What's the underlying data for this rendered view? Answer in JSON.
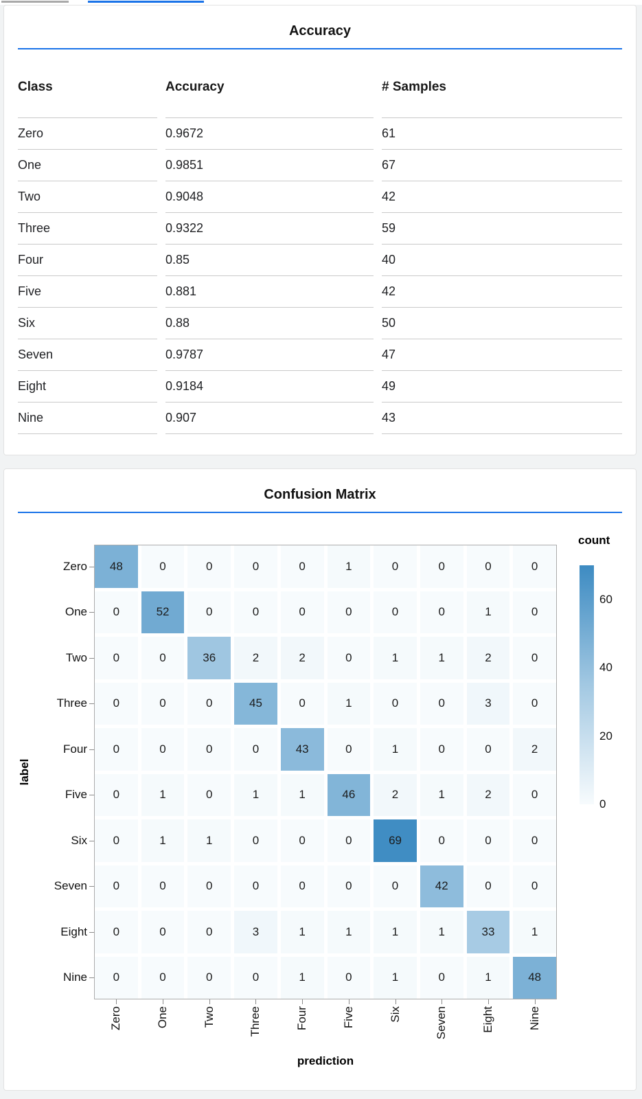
{
  "page": {
    "background": "#f1f3f4",
    "accent_blue": "#1a73e8",
    "tab_inactive_gray": "#a9a9a9"
  },
  "chart_data": [
    {
      "type": "table",
      "title": "Accuracy",
      "columns": [
        "Class",
        "Accuracy",
        "# Samples"
      ],
      "rows": [
        [
          "Zero",
          "0.9672",
          "61"
        ],
        [
          "One",
          "0.9851",
          "67"
        ],
        [
          "Two",
          "0.9048",
          "42"
        ],
        [
          "Three",
          "0.9322",
          "59"
        ],
        [
          "Four",
          "0.85",
          "40"
        ],
        [
          "Five",
          "0.881",
          "42"
        ],
        [
          "Six",
          "0.88",
          "50"
        ],
        [
          "Seven",
          "0.9787",
          "47"
        ],
        [
          "Eight",
          "0.9184",
          "49"
        ],
        [
          "Nine",
          "0.907",
          "43"
        ]
      ]
    },
    {
      "type": "heatmap",
      "title": "Confusion Matrix",
      "xlabel": "prediction",
      "ylabel": "label",
      "legend_title": "count",
      "legend_ticks": [
        0,
        20,
        40,
        60
      ],
      "legend_position": "right",
      "color_domain": [
        0,
        70
      ],
      "colors": {
        "low": "#f7fbfd",
        "mid": "#a2c8e2",
        "high": "#3d8bc2"
      },
      "categories": [
        "Zero",
        "One",
        "Two",
        "Three",
        "Four",
        "Five",
        "Six",
        "Seven",
        "Eight",
        "Nine"
      ],
      "matrix": [
        [
          48,
          0,
          0,
          0,
          0,
          1,
          0,
          0,
          0,
          0
        ],
        [
          0,
          52,
          0,
          0,
          0,
          0,
          0,
          0,
          1,
          0
        ],
        [
          0,
          0,
          36,
          2,
          2,
          0,
          1,
          1,
          2,
          0
        ],
        [
          0,
          0,
          0,
          45,
          0,
          1,
          0,
          0,
          3,
          0
        ],
        [
          0,
          0,
          0,
          0,
          43,
          0,
          1,
          0,
          0,
          2
        ],
        [
          0,
          1,
          0,
          1,
          1,
          46,
          2,
          1,
          2,
          0
        ],
        [
          0,
          1,
          1,
          0,
          0,
          0,
          69,
          0,
          0,
          0
        ],
        [
          0,
          0,
          0,
          0,
          0,
          0,
          0,
          42,
          0,
          0
        ],
        [
          0,
          0,
          0,
          3,
          1,
          1,
          1,
          1,
          33,
          1
        ],
        [
          0,
          0,
          0,
          0,
          1,
          0,
          1,
          0,
          1,
          48
        ]
      ]
    }
  ]
}
